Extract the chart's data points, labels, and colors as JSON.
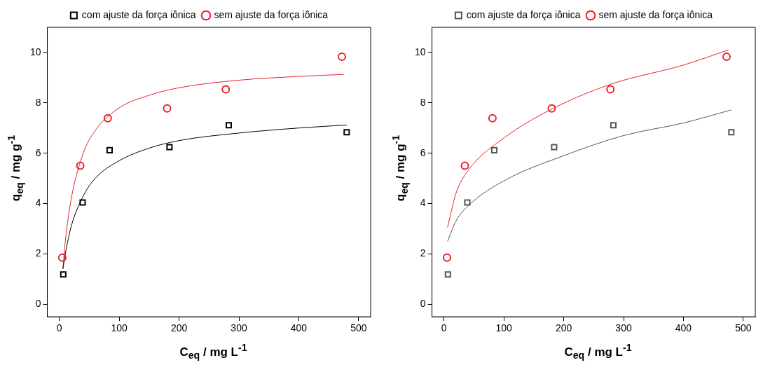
{
  "chart_data": [
    {
      "type": "scatter",
      "xlabel": "C$_{eq}$ / mg L$^{-1}$",
      "ylabel": "q$_{eq}$ / mg g$^{-1}$",
      "xlim": [
        -20,
        520
      ],
      "ylim": [
        -0.5,
        11
      ],
      "xticks": [
        0,
        100,
        200,
        300,
        400,
        500
      ],
      "yticks": [
        0,
        2,
        4,
        6,
        8,
        10
      ],
      "grid": false,
      "legend": "top",
      "series": [
        {
          "name": "com ajuste da força iônica",
          "color": "#000000",
          "marker": "square",
          "x": [
            6.6,
            39,
            84,
            184,
            283,
            480
          ],
          "values": [
            1.18,
            4.04,
            6.12,
            6.24,
            7.11,
            6.83
          ]
        },
        {
          "name": "sem ajuste da força iônica",
          "color": "#e8202a",
          "marker": "circle",
          "x": [
            5,
            35,
            81,
            180,
            278,
            472
          ],
          "values": [
            1.85,
            5.5,
            7.39,
            7.78,
            8.54,
            9.83
          ]
        },
        {
          "type": "line",
          "color": "#000000",
          "marker": "none",
          "x": [
            6,
            10,
            20,
            40,
            60,
            100,
            150,
            200,
            300,
            400,
            480
          ],
          "values": [
            1.4,
            2.0,
            3.1,
            4.3,
            5.0,
            5.7,
            6.2,
            6.5,
            6.8,
            7.0,
            7.12
          ]
        },
        {
          "type": "line",
          "color": "#e8202a",
          "marker": "none",
          "x": [
            6,
            10,
            20,
            40,
            60,
            100,
            150,
            200,
            300,
            400,
            475
          ],
          "values": [
            1.4,
            2.5,
            4.2,
            6.0,
            6.9,
            7.8,
            8.3,
            8.6,
            8.9,
            9.05,
            9.13
          ]
        }
      ]
    },
    {
      "type": "scatter",
      "xlabel": "C$_{eq}$ / mg L$^{-1}$",
      "ylabel": "q$_{eq}$ / mg g$^{-1}$",
      "xlim": [
        -20,
        520
      ],
      "ylim": [
        -0.5,
        11
      ],
      "xticks": [
        0,
        100,
        200,
        300,
        400,
        500
      ],
      "yticks": [
        0,
        2,
        4,
        6,
        8,
        10
      ],
      "grid": false,
      "legend": "top",
      "series": [
        {
          "name": "com ajuste da força iônica",
          "color": "#555555",
          "marker": "square",
          "x": [
            6.6,
            39,
            84,
            184,
            283,
            480
          ],
          "values": [
            1.18,
            4.04,
            6.12,
            6.24,
            7.11,
            6.83
          ]
        },
        {
          "name": "sem ajuste da força iônica",
          "color": "#e8202a",
          "marker": "circle",
          "x": [
            5,
            35,
            81,
            180,
            278,
            472
          ],
          "values": [
            1.85,
            5.5,
            7.39,
            7.78,
            8.54,
            9.83
          ]
        },
        {
          "type": "line",
          "color": "#555555",
          "marker": "none",
          "x": [
            6,
            20,
            40,
            100,
            200,
            300,
            400,
            480
          ],
          "values": [
            2.5,
            3.3,
            3.9,
            4.9,
            5.9,
            6.7,
            7.2,
            7.72
          ]
        },
        {
          "type": "line",
          "color": "#e8202a",
          "marker": "none",
          "x": [
            6,
            20,
            40,
            100,
            180,
            280,
            400,
            475
          ],
          "values": [
            3.05,
            4.4,
            5.3,
            6.6,
            7.75,
            8.75,
            9.5,
            10.1
          ]
        }
      ]
    }
  ]
}
